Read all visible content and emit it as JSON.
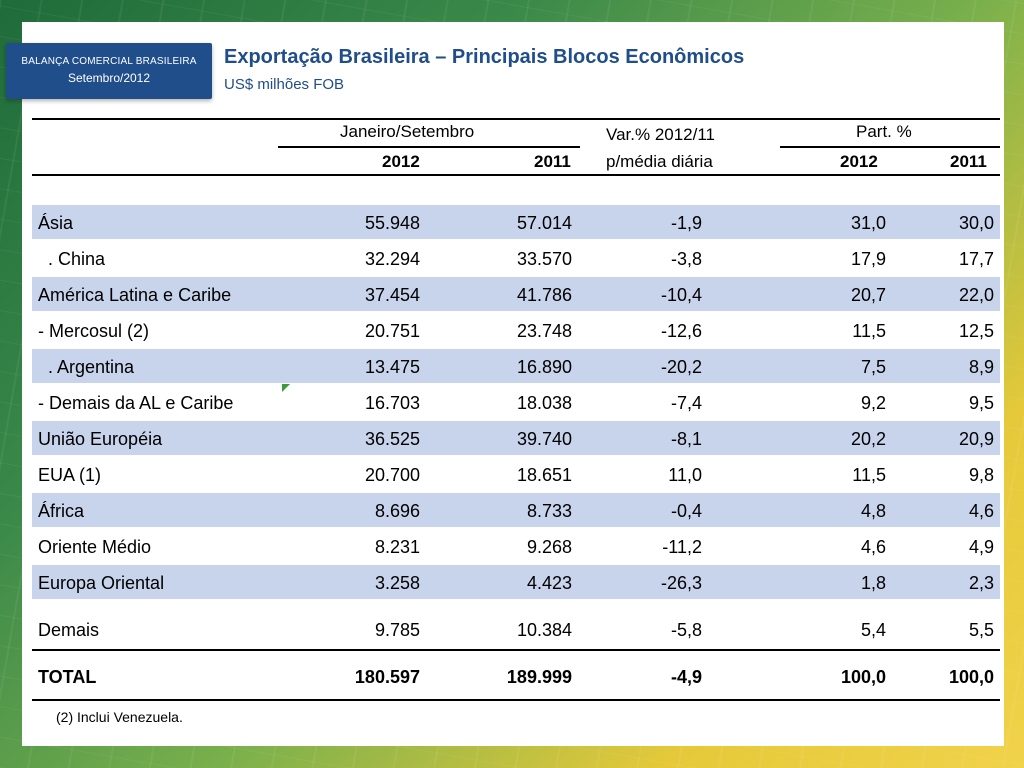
{
  "badge": {
    "line1": "BALANÇA COMERCIAL BRASILEIRA",
    "line2": "Setembro/2012"
  },
  "title": "Exportação Brasileira – Principais Blocos Econômicos",
  "subtitle": "US$ milhões FOB",
  "table": {
    "header": {
      "group1": "Janeiro/Setembro",
      "var_line1": "Var.% 2012/11",
      "var_line2": "p/média diária",
      "group2": "Part. %",
      "y2012": "2012",
      "y2011": "2011",
      "p2012": "2012",
      "p2011": "2011"
    },
    "rows": [
      {
        "label": "Ásia",
        "v2012": "55.948",
        "v2011": "57.014",
        "var": "-1,9",
        "p2012": "31,0",
        "p2011": "30,0"
      },
      {
        "label": "  . China",
        "v2012": "32.294",
        "v2011": "33.570",
        "var": "-3,8",
        "p2012": "17,9",
        "p2011": "17,7"
      },
      {
        "label": "América Latina e Caribe",
        "v2012": "37.454",
        "v2011": "41.786",
        "var": "-10,4",
        "p2012": "20,7",
        "p2011": "22,0"
      },
      {
        "label": "- Mercosul (2)",
        "v2012": "20.751",
        "v2011": "23.748",
        "var": "-12,6",
        "p2012": "11,5",
        "p2011": "12,5"
      },
      {
        "label": "  . Argentina",
        "v2012": "13.475",
        "v2011": "16.890",
        "var": "-20,2",
        "p2012": "7,5",
        "p2011": "8,9"
      },
      {
        "label": "- Demais da AL e Caribe",
        "v2012": "16.703",
        "v2011": "18.038",
        "var": "-7,4",
        "p2012": "9,2",
        "p2011": "9,5"
      },
      {
        "label": "União Européia",
        "v2012": "36.525",
        "v2011": "39.740",
        "var": "-8,1",
        "p2012": "20,2",
        "p2011": "20,9"
      },
      {
        "label": "EUA (1)",
        "v2012": "20.700",
        "v2011": "18.651",
        "var": "11,0",
        "p2012": "11,5",
        "p2011": "9,8"
      },
      {
        "label": "África",
        "v2012": "8.696",
        "v2011": "8.733",
        "var": "-0,4",
        "p2012": "4,8",
        "p2011": "4,6"
      },
      {
        "label": "Oriente Médio",
        "v2012": "8.231",
        "v2011": "9.268",
        "var": "-11,2",
        "p2012": "4,6",
        "p2011": "4,9"
      },
      {
        "label": "Europa Oriental",
        "v2012": "3.258",
        "v2011": "4.423",
        "var": "-26,3",
        "p2012": "1,8",
        "p2011": "2,3"
      },
      {
        "label": "Demais",
        "v2012": "9.785",
        "v2011": "10.384",
        "var": "-5,8",
        "p2012": "5,4",
        "p2011": "5,5"
      }
    ],
    "total": {
      "label": "TOTAL",
      "v2012": "180.597",
      "v2011": "189.999",
      "var": "-4,9",
      "p2012": "100,0",
      "p2011": "100,0"
    }
  },
  "footnote": "(2) Inclui Venezuela."
}
